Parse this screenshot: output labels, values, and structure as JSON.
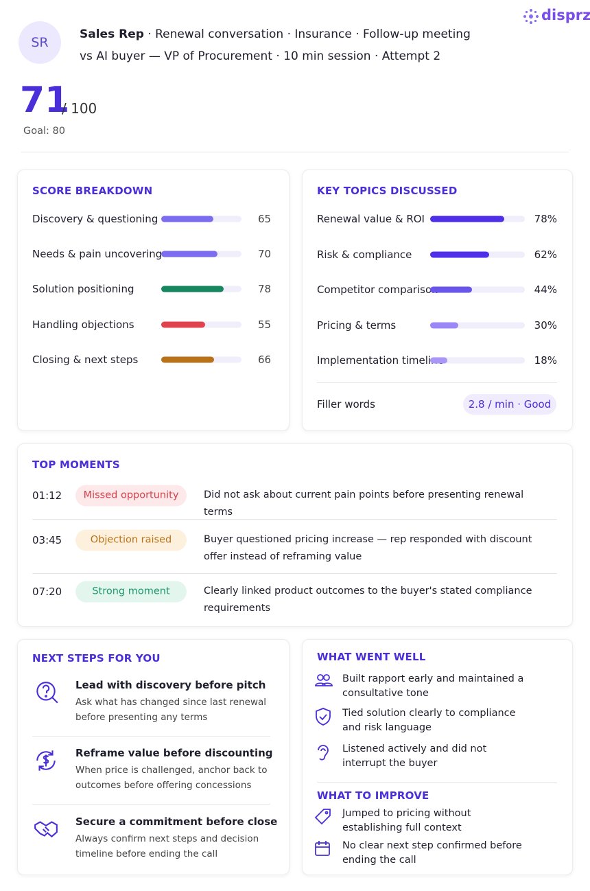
{
  "logo": "disprz",
  "header": {
    "initials": "SR",
    "name": "Sales Rep",
    "meta": "· Renewal conversation · Insurance · Follow-up meeting",
    "subline": "vs AI buyer — VP of Procurement · 10 min session · Attempt 2"
  },
  "score": {
    "value": 71,
    "out_of": {
      "value": 100,
      "label": "/ 100"
    },
    "goal": "Goal: 80"
  },
  "score_breakdown": {
    "title": "SCORE BREAKDOWN",
    "rows": [
      {
        "label": "Discovery & questioning",
        "value": 65,
        "color": "#7b6cf0"
      },
      {
        "label": "Needs & pain uncovering",
        "value": 70,
        "color": "#7b6cf0"
      },
      {
        "label": "Solution positioning",
        "value": 78,
        "color": "#17875f"
      },
      {
        "label": "Handling objections",
        "value": 55,
        "color": "#e0434d"
      },
      {
        "label": "Closing & next steps",
        "value": 66,
        "color": "#b8731a"
      }
    ]
  },
  "key_topics": {
    "title": "KEY TOPICS DISCUSSED",
    "rows": [
      {
        "label": "Renewal value & ROI",
        "value": {
          "value": 78,
          "label": "78%"
        },
        "color": "#4f2fe8"
      },
      {
        "label": "Risk & compliance",
        "value": {
          "value": 62,
          "label": "62%"
        },
        "color": "#4f2fe8"
      },
      {
        "label": "Competitor comparison",
        "value": {
          "value": 44,
          "label": "44%"
        },
        "color": "#6a55ea"
      },
      {
        "label": "Pricing & terms",
        "value": {
          "value": 30,
          "label": "30%"
        },
        "color": "#9b87f5"
      },
      {
        "label": "Implementation timeline",
        "value": {
          "value": 18,
          "label": "18%"
        },
        "color": "#a996f7"
      }
    ],
    "filler": {
      "label": "Filler words",
      "value": "2.8 / min · Good"
    }
  },
  "top_moments": {
    "title": "TOP MOMENTS",
    "rows": [
      {
        "time": "01:12",
        "tag": "Missed opportunity",
        "text": "Did not ask about current pain points before presenting renewal terms"
      },
      {
        "time": "03:45",
        "tag": "Objection raised",
        "text": "Buyer questioned pricing increase — rep responded with discount offer instead of reframing value"
      },
      {
        "time": "07:20",
        "tag": "Strong moment",
        "text": "Clearly linked product outcomes to the buyer's stated compliance requirements"
      }
    ]
  },
  "next_steps": {
    "title": "NEXT STEPS FOR YOU",
    "items": [
      {
        "title": "Lead with discovery before pitch",
        "text": "Ask what has changed since last renewal before presenting any terms"
      },
      {
        "title": "Reframe value before discounting",
        "text": "When price is challenged, anchor back to outcomes before offering concessions"
      },
      {
        "title": "Secure a commitment before close",
        "text": "Always confirm next steps and decision timeline before ending the call"
      }
    ]
  },
  "went_well": {
    "title": "WHAT WENT WELL",
    "items": [
      "Built rapport early and maintained a consultative tone",
      "Tied solution clearly to compliance and risk language",
      "Listened actively and did not interrupt the buyer"
    ]
  },
  "to_improve": {
    "title": "WHAT TO IMPROVE",
    "items": [
      "Jumped to pricing without establishing full context",
      "No clear next step confirmed before ending the call"
    ]
  }
}
